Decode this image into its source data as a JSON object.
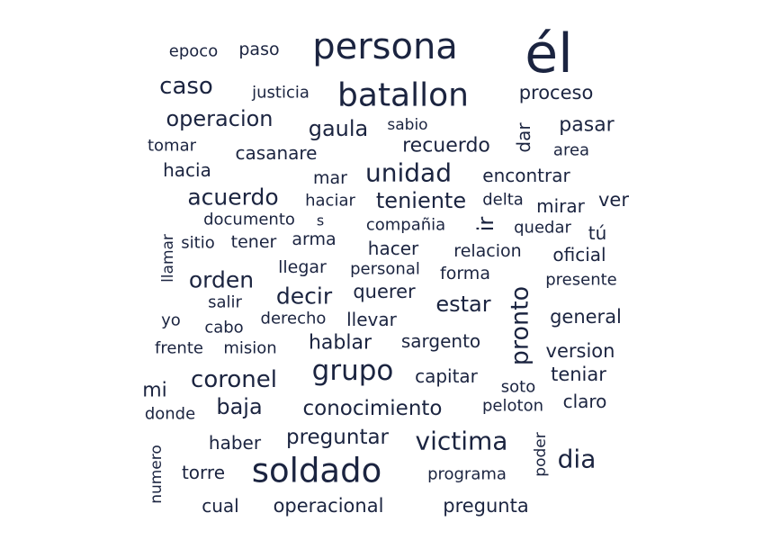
{
  "chart_data": {
    "type": "wordcloud",
    "title": "",
    "color": "#1b2440",
    "words": [
      {
        "text": "él",
        "weight": 60
      },
      {
        "text": "persona",
        "weight": 40
      },
      {
        "text": "soldado",
        "weight": 37
      },
      {
        "text": "batallon",
        "weight": 36
      },
      {
        "text": "grupo",
        "weight": 31
      },
      {
        "text": "victima",
        "weight": 28
      },
      {
        "text": "unidad",
        "weight": 28
      },
      {
        "text": "dia",
        "weight": 28
      },
      {
        "text": "pronto",
        "weight": 27
      },
      {
        "text": "caso",
        "weight": 26
      },
      {
        "text": "coronel",
        "weight": 26
      },
      {
        "text": "orden",
        "weight": 25
      },
      {
        "text": "decir",
        "weight": 25
      },
      {
        "text": "acuerdo",
        "weight": 25
      },
      {
        "text": "operacion",
        "weight": 24
      },
      {
        "text": "baja",
        "weight": 24
      },
      {
        "text": "teniente",
        "weight": 24
      },
      {
        "text": "gaula",
        "weight": 24
      },
      {
        "text": "ir",
        "weight": 24
      },
      {
        "text": "estar",
        "weight": 24
      },
      {
        "text": "conocimiento",
        "weight": 23
      },
      {
        "text": "preguntar",
        "weight": 23
      },
      {
        "text": "hablar",
        "weight": 22
      },
      {
        "text": "recuerdo",
        "weight": 22
      },
      {
        "text": "mi",
        "weight": 22
      },
      {
        "text": "pasar",
        "weight": 22
      },
      {
        "text": "proceso",
        "weight": 21
      },
      {
        "text": "general",
        "weight": 21
      },
      {
        "text": "version",
        "weight": 21
      },
      {
        "text": "teniar",
        "weight": 21
      },
      {
        "text": "ver",
        "weight": 21
      },
      {
        "text": "querer",
        "weight": 21
      },
      {
        "text": "operacional",
        "weight": 21
      },
      {
        "text": "pregunta",
        "weight": 21
      },
      {
        "text": "dar",
        "weight": 20
      },
      {
        "text": "oficial",
        "weight": 20
      },
      {
        "text": "tú",
        "weight": 20
      },
      {
        "text": "cual",
        "weight": 20
      },
      {
        "text": "haber",
        "weight": 20
      },
      {
        "text": "sargento",
        "weight": 20
      },
      {
        "text": "llevar",
        "weight": 20
      },
      {
        "text": "mirar",
        "weight": 20
      },
      {
        "text": "casanare",
        "weight": 20
      },
      {
        "text": "hacia",
        "weight": 20
      },
      {
        "text": "hacer",
        "weight": 20
      },
      {
        "text": "torre",
        "weight": 20
      },
      {
        "text": "capitar",
        "weight": 20
      },
      {
        "text": "encontrar",
        "weight": 20
      },
      {
        "text": "claro",
        "weight": 20
      },
      {
        "text": "relacion",
        "weight": 19
      },
      {
        "text": "forma",
        "weight": 19
      },
      {
        "text": "mar",
        "weight": 19
      },
      {
        "text": "paso",
        "weight": 19
      },
      {
        "text": "tener",
        "weight": 19
      },
      {
        "text": "arma",
        "weight": 19
      },
      {
        "text": "llegar",
        "weight": 19
      },
      {
        "text": "justicia",
        "weight": 18
      },
      {
        "text": "epoco",
        "weight": 18
      },
      {
        "text": "tomar",
        "weight": 18
      },
      {
        "text": "area",
        "weight": 18
      },
      {
        "text": "delta",
        "weight": 18
      },
      {
        "text": "quedar",
        "weight": 18
      },
      {
        "text": "compañia",
        "weight": 18
      },
      {
        "text": "personal",
        "weight": 18
      },
      {
        "text": "presente",
        "weight": 18
      },
      {
        "text": "sitio",
        "weight": 18
      },
      {
        "text": "salir",
        "weight": 18
      },
      {
        "text": "yo",
        "weight": 18
      },
      {
        "text": "cabo",
        "weight": 18
      },
      {
        "text": "derecho",
        "weight": 18
      },
      {
        "text": "mision",
        "weight": 18
      },
      {
        "text": "frente",
        "weight": 18
      },
      {
        "text": "donde",
        "weight": 18
      },
      {
        "text": "soto",
        "weight": 18
      },
      {
        "text": "peloton",
        "weight": 18
      },
      {
        "text": "programa",
        "weight": 18
      },
      {
        "text": "haciar",
        "weight": 18
      },
      {
        "text": "documento",
        "weight": 18
      },
      {
        "text": "sabio",
        "weight": 17
      },
      {
        "text": "llamar",
        "weight": 17
      },
      {
        "text": "numero",
        "weight": 17
      },
      {
        "text": "poder",
        "weight": 17
      },
      {
        "text": "s",
        "weight": 16
      }
    ]
  }
}
